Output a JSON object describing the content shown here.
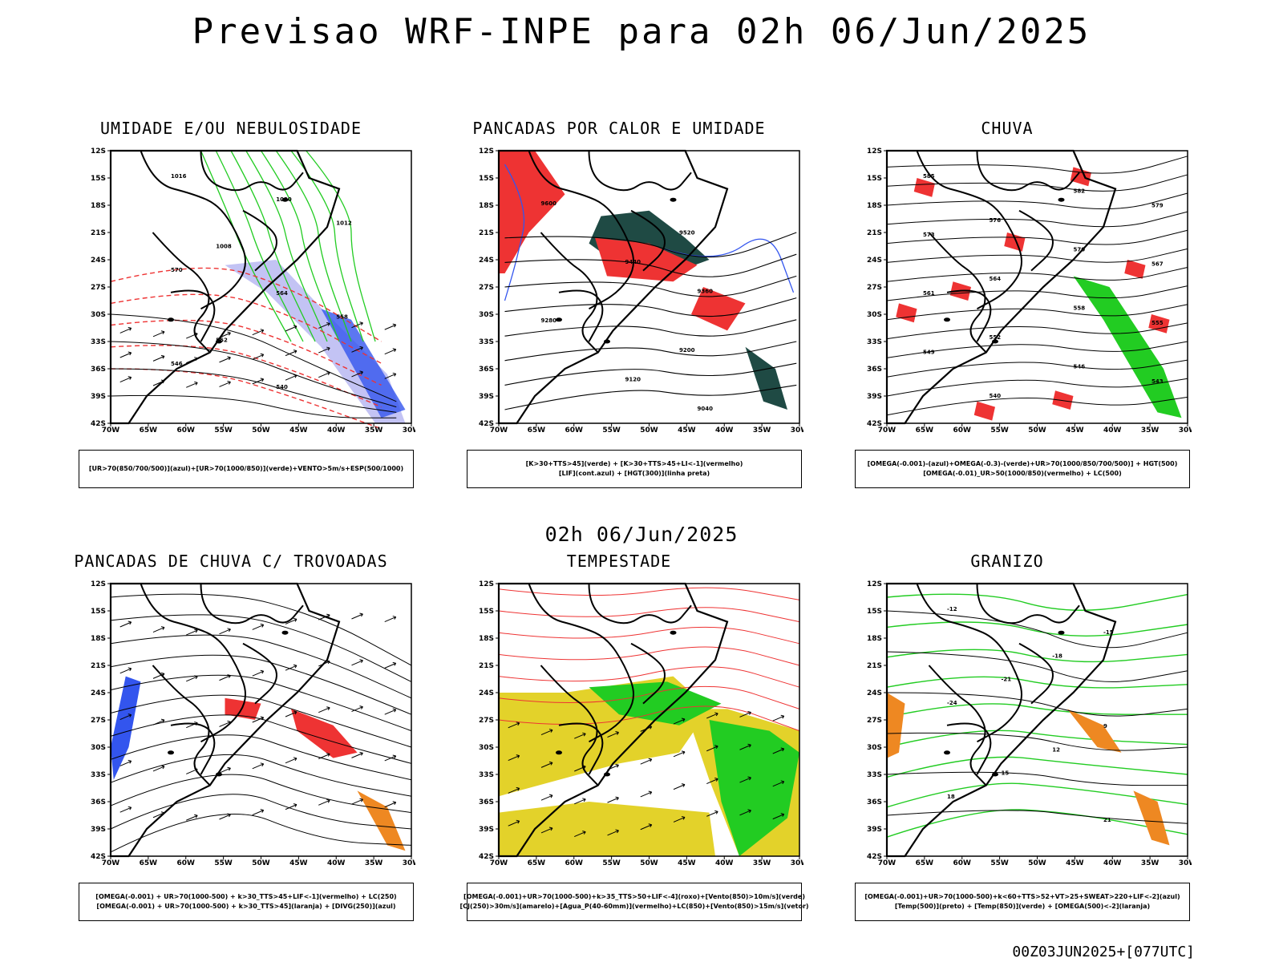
{
  "header": {
    "main_title": "Previsao WRF-INPE  para 02h 06/Jun/2025",
    "mid_title": "02h 06/Jun/2025",
    "footer": "00Z03JUN2025+[077UTC]"
  },
  "axes": {
    "lat_labels": [
      "12S",
      "15S",
      "18S",
      "21S",
      "24S",
      "27S",
      "30S",
      "33S",
      "36S",
      "39S",
      "42S"
    ],
    "lon_labels": [
      "70W",
      "65W",
      "60W",
      "55W",
      "50W",
      "45W",
      "40W",
      "35W",
      "30W"
    ]
  },
  "colors": {
    "blue": "#3355ee",
    "green": "#22cc22",
    "red": "#ee3333",
    "dark_teal": "#1f4a44",
    "yellow": "#e3d22a",
    "orange": "#ee8822",
    "lavender": "#b8b8f2"
  },
  "panels": [
    {
      "title": "UMIDADE E/OU NEBULOSIDADE",
      "legend": [
        "[UR>70(850/700/500)](azul)+[UR>70(1000/850)](verde)+VENTO>5m/s+ESP(500/1000)"
      ],
      "contour_labels": [
        "1016",
        "1020",
        "1012",
        "1008",
        "570",
        "564",
        "558",
        "552",
        "546",
        "540"
      ]
    },
    {
      "title": "PANCADAS POR CALOR E UMIDADE",
      "legend": [
        "[K>30+TTS>45](verde) + [K>30+TTS>45+LI<-1](vermelho)",
        "[LIF](cont.azul) + [HGT(300)](linha preta)"
      ],
      "contour_labels": [
        "9600",
        "9520",
        "9440",
        "9360",
        "9280",
        "9200",
        "9120",
        "9040"
      ]
    },
    {
      "title": "CHUVA",
      "legend": [
        "[OMEGA(-0.001)-(azul)+OMEGA(-0.3)-(verde)+UR>70(1000/850/700/500)] + HGT(500)",
        "[OMEGA(-0.01)_UR>50(1000/850)(vermelho) + LC(500)"
      ],
      "contour_labels": [
        "585",
        "582",
        "579",
        "576",
        "573",
        "570",
        "567",
        "564",
        "561",
        "558",
        "555",
        "552",
        "549",
        "546",
        "543",
        "540"
      ]
    },
    {
      "title": "PANCADAS DE CHUVA C/ TROVOADAS",
      "legend": [
        "[OMEGA(-0.001) + UR>70(1000-500) + k>30_TTS>45+LIF<-1](vermelho) + LC(250)",
        "[OMEGA(-0.001) + UR>70(1000-500) + k>30_TTS>45](laranja) + [DIVG(250)](azul)"
      ],
      "contour_labels": []
    },
    {
      "title": "TEMPESTADE",
      "legend": [
        "[OMEGA(-0.001)+UR>70(1000-500)+k>35_TTS>50+LIF<-4](roxo)+[Vento(850)>10m/s](verde)",
        "[CJ(250)>30m/s](amarelo)+[Agua_P(40-60mm)](vermelho)+LC(850)+[Vento(850)>15m/s](vetor)"
      ],
      "contour_labels": []
    },
    {
      "title": "GRANIZO",
      "legend": [
        "[OMEGA(-0.001)+UR>70(1000-500)+k<60+TTS>52+VT>25+SWEAT>220+LIF<-2](azul)",
        "[Temp(500)](preto) + [Temp(850)](verde) + [OMEGA(500)<-2](laranja)"
      ],
      "contour_labels": [
        "-12",
        "-15",
        "-18",
        "-21",
        "-24",
        "9",
        "12",
        "15",
        "18",
        "21"
      ]
    }
  ]
}
